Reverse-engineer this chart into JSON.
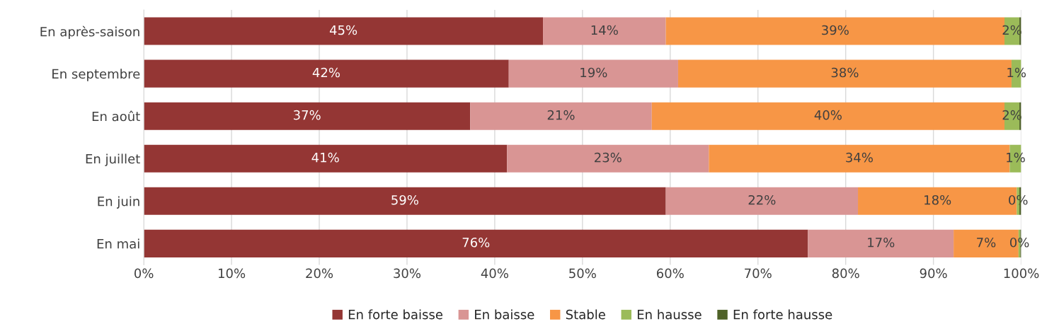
{
  "chart_data": {
    "type": "bar",
    "orientation": "horizontal",
    "stacked": true,
    "categories": [
      "En après-saison",
      "En septembre",
      "En août",
      "En juillet",
      "En juin",
      "En mai"
    ],
    "series": [
      {
        "name": "En forte baisse",
        "color": "#943634",
        "values": [
          45.5,
          41.6,
          37.2,
          41.4,
          59.5,
          75.7
        ],
        "value_labels": [
          "45%",
          "42%",
          "37%",
          "41%",
          "59%",
          "76%"
        ]
      },
      {
        "name": "En baisse",
        "color": "#d99594",
        "values": [
          14.0,
          19.3,
          20.7,
          23.0,
          21.9,
          16.6
        ],
        "value_labels": [
          "14%",
          "19%",
          "21%",
          "23%",
          "22%",
          "17%"
        ]
      },
      {
        "name": "Stable",
        "color": "#f79646",
        "values": [
          38.6,
          38.0,
          40.2,
          34.3,
          18.1,
          7.4
        ],
        "value_labels": [
          "39%",
          "38%",
          "40%",
          "34%",
          "18%",
          "7%"
        ]
      },
      {
        "name": "En hausse",
        "color": "#9bbb59",
        "values": [
          1.7,
          1.1,
          1.7,
          1.3,
          0.3,
          0.2
        ],
        "value_labels": [
          "2%",
          "1%",
          "2%",
          "1%",
          "0%",
          "0%"
        ]
      },
      {
        "name": "En forte hausse",
        "color": "#4f6228",
        "values": [
          0.2,
          null,
          0.2,
          null,
          0.2,
          0.1
        ]
      }
    ],
    "xlim": [
      0,
      100
    ],
    "xticks": [
      {
        "value": 0,
        "label": "0%"
      },
      {
        "value": 10,
        "label": "10%"
      },
      {
        "value": 20,
        "label": "20%"
      },
      {
        "value": 30,
        "label": "30%"
      },
      {
        "value": 40,
        "label": "40%"
      },
      {
        "value": 50,
        "label": "50%"
      },
      {
        "value": 60,
        "label": "60%"
      },
      {
        "value": 70,
        "label": "70%"
      },
      {
        "value": 80,
        "label": "80%"
      },
      {
        "value": 90,
        "label": "90%"
      },
      {
        "value": 100,
        "label": "100%"
      }
    ],
    "grid": "x",
    "legend": "bottom"
  }
}
